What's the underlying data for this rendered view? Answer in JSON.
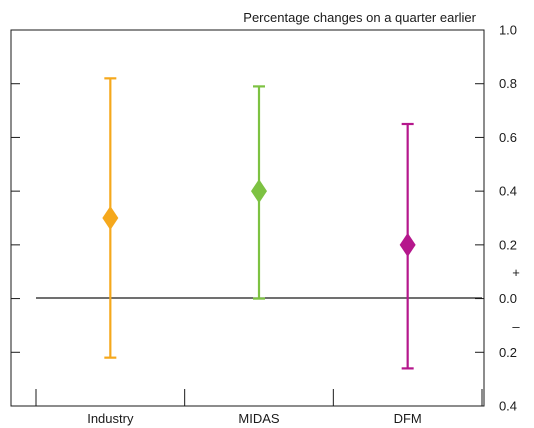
{
  "chart_data": {
    "type": "errorbar",
    "title": "Percentage changes on a quarter earlier",
    "categories": [
      "Industry",
      "MIDAS",
      "DFM"
    ],
    "series": [
      {
        "category": "Industry",
        "value": 0.3,
        "low": -0.22,
        "high": 0.82,
        "color": "#f5a81c"
      },
      {
        "category": "MIDAS",
        "value": 0.4,
        "low": 0.0,
        "high": 0.79,
        "color": "#7dc242"
      },
      {
        "category": "DFM",
        "value": 0.2,
        "low": -0.26,
        "high": 0.65,
        "color": "#b5178c"
      }
    ],
    "ylim": [
      -0.4,
      1.0
    ],
    "ytick_values": [
      1.0,
      0.8,
      0.6,
      0.4,
      0.2,
      0.0,
      -0.2,
      -0.4
    ],
    "ytick_labels": [
      "1.0",
      "0.8",
      "0.6",
      "0.4",
      "0.2",
      "0.0",
      "0.2",
      "0.4"
    ],
    "sign_labels": {
      "positive": "+",
      "negative": "–"
    },
    "zero_line": true,
    "grid": false
  }
}
